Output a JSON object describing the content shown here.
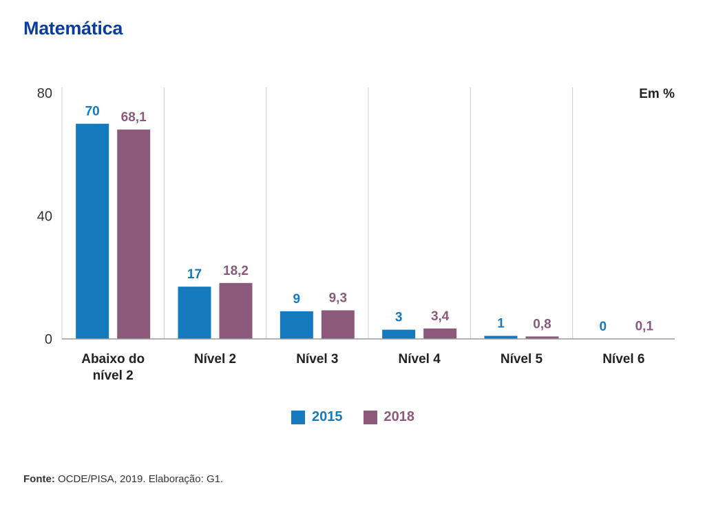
{
  "title": "Matemática",
  "unit_label": "Em %",
  "source": {
    "label": "Fonte:",
    "text": " OCDE/PISA, 2019. Elaboração: G1."
  },
  "colors": {
    "title": "#0a3d9c",
    "series_2015": "#1479bd",
    "series_2018": "#8b5a7a",
    "axis_text": "#333333",
    "grid": "#cccccc"
  },
  "chart_data": {
    "type": "bar",
    "title": "Matemática",
    "categories": [
      [
        "Abaixo do",
        "nível 2"
      ],
      [
        "Nível 2"
      ],
      [
        "Nível 3"
      ],
      [
        "Nível 4"
      ],
      [
        "Nível 5"
      ],
      [
        "Nível 6"
      ]
    ],
    "series": [
      {
        "name": "2015",
        "values": [
          70,
          17,
          9,
          3,
          1,
          0
        ],
        "labels": [
          "70",
          "17",
          "9",
          "3",
          "1",
          "0"
        ]
      },
      {
        "name": "2018",
        "values": [
          68.1,
          18.2,
          9.3,
          3.4,
          0.8,
          0.1
        ],
        "labels": [
          "68,1",
          "18,2",
          "9,3",
          "3,4",
          "0,8",
          "0,1"
        ]
      }
    ],
    "ylim": [
      0,
      80
    ],
    "yticks": [
      "0",
      "40",
      "80"
    ],
    "grid": true,
    "legend": "bottom-center"
  }
}
